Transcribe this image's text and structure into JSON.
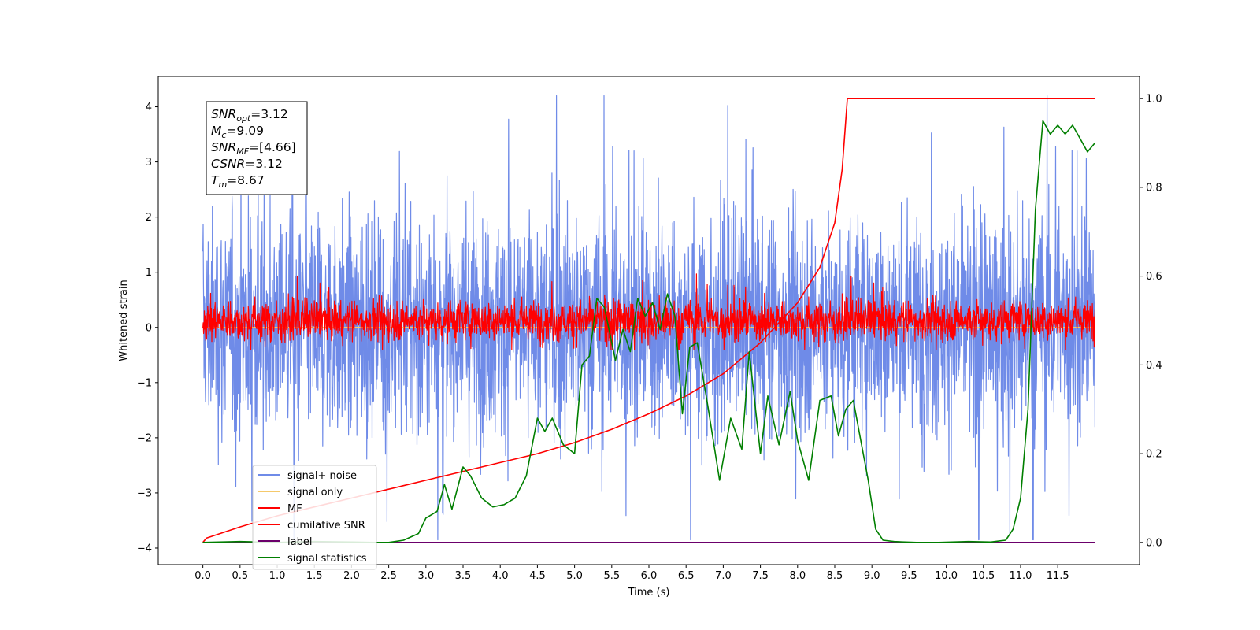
{
  "chart_data": {
    "type": "line",
    "xlabel": "Time (s)",
    "ylabel": "Whitened strain",
    "ylabel_right": "",
    "xlim": [
      -0.6,
      12.6
    ],
    "ylim": [
      -4.3,
      4.55
    ],
    "ylim_right": [
      -0.05,
      1.05
    ],
    "x_ticks": [
      "0.0",
      "0.5",
      "1.0",
      "1.5",
      "2.0",
      "2.5",
      "3.0",
      "3.5",
      "4.0",
      "4.5",
      "5.0",
      "5.5",
      "6.0",
      "6.5",
      "7.0",
      "7.5",
      "8.0",
      "8.5",
      "9.0",
      "9.5",
      "10.0",
      "10.5",
      "11.0",
      "11.5"
    ],
    "y_ticks_left": [
      "4",
      "3",
      "2",
      "1",
      "0",
      "−1",
      "−2",
      "−3",
      "−4"
    ],
    "y_ticks_right": [
      "1.0",
      "0.8",
      "0.6",
      "0.4",
      "0.2",
      "0.0"
    ],
    "legend": {
      "placement": "lower-left",
      "entries": [
        {
          "label": "signal+ noise",
          "color": "#6f8be8"
        },
        {
          "label": "signal only",
          "color": "#f5c96b"
        },
        {
          "label": "MF",
          "color": "#ff0000"
        },
        {
          "label": "cumilative SNR",
          "color": "#ff0000"
        },
        {
          "label": "label",
          "color": "#6b006b"
        },
        {
          "label": "signal statistics",
          "color": "#007f00"
        }
      ]
    },
    "annotation": [
      {
        "base": "SNR",
        "sub": "opt",
        "value": "=3.12"
      },
      {
        "base": "M",
        "sub": "c",
        "value": "=9.09"
      },
      {
        "base": "SNR",
        "sub": "MF",
        "value": "=[4.66]"
      },
      {
        "base": "CSNR",
        "sub": "",
        "value": "=3.12"
      },
      {
        "base": "T",
        "sub": "m",
        "value": "=8.67"
      }
    ],
    "series": [
      {
        "name": "signal+ noise",
        "axis": "left",
        "color": "#6f8be8",
        "kind": "noise",
        "x_range": [
          0.0,
          12.0
        ],
        "center": 0.0,
        "typical_range": [
          -2.3,
          2.4
        ],
        "extremes": [
          -3.85,
          4.2
        ]
      },
      {
        "name": "signal only",
        "axis": "left",
        "color": "#f5c96b",
        "kind": "flat",
        "x_range": [
          0.0,
          12.0
        ],
        "value": 0.0
      },
      {
        "name": "MF",
        "axis": "left",
        "color": "#ff0000",
        "kind": "noise",
        "x_range": [
          0.0,
          12.0
        ],
        "center": 0.0,
        "typical_range": [
          -0.35,
          0.6
        ],
        "extremes": [
          -0.4,
          0.97
        ]
      },
      {
        "name": "cumilative SNR",
        "axis": "right",
        "color": "#ff0000",
        "x": [
          0.0,
          0.05,
          0.5,
          1.0,
          1.5,
          2.0,
          2.5,
          3.0,
          3.5,
          4.0,
          4.5,
          5.0,
          5.5,
          6.0,
          6.5,
          7.0,
          7.5,
          8.0,
          8.3,
          8.5,
          8.6,
          8.67,
          9.0,
          10.0,
          11.0,
          12.0
        ],
        "y": [
          0.0,
          0.01,
          0.035,
          0.06,
          0.08,
          0.1,
          0.12,
          0.14,
          0.16,
          0.18,
          0.2,
          0.225,
          0.255,
          0.29,
          0.33,
          0.38,
          0.45,
          0.54,
          0.62,
          0.72,
          0.84,
          1.0,
          1.0,
          1.0,
          1.0,
          1.0
        ]
      },
      {
        "name": "label",
        "axis": "right",
        "color": "#6b006b",
        "x": [
          0.0,
          12.0
        ],
        "y": [
          0.0,
          0.0
        ]
      },
      {
        "name": "signal statistics",
        "axis": "right",
        "color": "#007f00",
        "x": [
          0.0,
          0.5,
          1.0,
          1.5,
          2.0,
          2.3,
          2.5,
          2.7,
          2.9,
          3.0,
          3.15,
          3.25,
          3.35,
          3.5,
          3.6,
          3.75,
          3.9,
          4.05,
          4.2,
          4.35,
          4.5,
          4.6,
          4.7,
          4.85,
          5.0,
          5.1,
          5.2,
          5.3,
          5.4,
          5.55,
          5.65,
          5.75,
          5.85,
          5.95,
          6.05,
          6.15,
          6.25,
          6.35,
          6.45,
          6.55,
          6.65,
          6.8,
          6.95,
          7.1,
          7.25,
          7.35,
          7.5,
          7.6,
          7.75,
          7.9,
          8.0,
          8.15,
          8.3,
          8.45,
          8.55,
          8.65,
          8.75,
          8.85,
          8.95,
          9.05,
          9.15,
          9.3,
          9.6,
          9.9,
          10.3,
          10.6,
          10.8,
          10.9,
          11.0,
          11.1,
          11.2,
          11.3,
          11.4,
          11.5,
          11.6,
          11.7,
          11.8,
          11.9,
          12.0
        ],
        "y": [
          0.0,
          0.002,
          0.0,
          0.002,
          0.001,
          0.0,
          0.0,
          0.005,
          0.02,
          0.055,
          0.07,
          0.13,
          0.075,
          0.17,
          0.15,
          0.1,
          0.08,
          0.085,
          0.1,
          0.15,
          0.28,
          0.25,
          0.28,
          0.22,
          0.2,
          0.4,
          0.42,
          0.55,
          0.53,
          0.41,
          0.48,
          0.43,
          0.55,
          0.51,
          0.54,
          0.48,
          0.56,
          0.51,
          0.29,
          0.44,
          0.45,
          0.3,
          0.14,
          0.28,
          0.21,
          0.43,
          0.2,
          0.33,
          0.22,
          0.34,
          0.23,
          0.14,
          0.32,
          0.33,
          0.24,
          0.3,
          0.32,
          0.23,
          0.14,
          0.03,
          0.005,
          0.002,
          0.0,
          0.0,
          0.002,
          0.001,
          0.005,
          0.03,
          0.1,
          0.3,
          0.75,
          0.95,
          0.92,
          0.94,
          0.92,
          0.94,
          0.91,
          0.88,
          0.9
        ]
      }
    ]
  }
}
